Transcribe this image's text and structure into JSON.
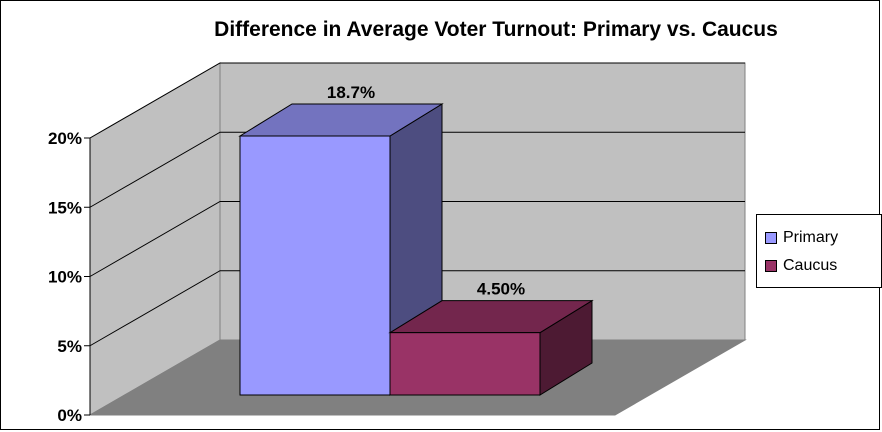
{
  "chart_data": {
    "type": "bar",
    "title": "Difference in Average Voter Turnout: Primary vs. Caucus",
    "xlabel": "",
    "ylabel": "",
    "ylim": [
      0,
      20
    ],
    "y_ticks": [
      "0%",
      "5%",
      "10%",
      "15%",
      "20%"
    ],
    "grid": true,
    "legend_position": "right",
    "series": [
      {
        "name": "Primary",
        "value": 18.7,
        "label": "18.7%",
        "color": "#9999ff"
      },
      {
        "name": "Caucus",
        "value": 4.5,
        "label": "4.50%",
        "color": "#993366"
      }
    ],
    "colors": {
      "back_wall": "#c0c0c0",
      "side_wall": "#c0c0c0",
      "floor": "#808080"
    }
  }
}
